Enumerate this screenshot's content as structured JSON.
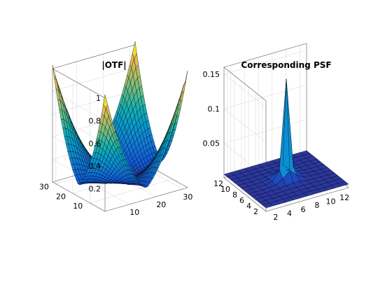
{
  "chart_data": [
    {
      "type": "surface",
      "title": "|OTF|",
      "xlabel": "",
      "ylabel": "",
      "zlabel": "",
      "grid": true,
      "x": [
        1,
        2,
        3,
        4,
        5,
        6,
        7,
        8,
        9,
        10,
        11,
        12,
        13,
        14,
        15,
        16,
        17,
        18,
        19,
        20,
        21,
        22,
        23,
        24,
        25,
        26,
        27,
        28,
        29,
        30,
        31,
        32
      ],
      "y": [
        1,
        2,
        3,
        4,
        5,
        6,
        7,
        8,
        9,
        10,
        11,
        12,
        13,
        14,
        15,
        16,
        17,
        18,
        19,
        20,
        21,
        22,
        23,
        24,
        25,
        26,
        27,
        28,
        29,
        30,
        31,
        32
      ],
      "z_description_peaks": [
        [
          1,
          1,
          1.0
        ],
        [
          1,
          32,
          1.0
        ],
        [
          32,
          1,
          1.0
        ],
        [
          32,
          32,
          1.0
        ]
      ],
      "xlim": [
        1,
        32
      ],
      "ylim": [
        1,
        32
      ],
      "zlim": [
        0,
        1
      ],
      "x_ticks": [
        "10",
        "20",
        "30"
      ],
      "y_ticks": [
        "10",
        "20",
        "30"
      ],
      "z_ticks": [
        "0.2",
        "0.4",
        "0.6",
        "0.8",
        "1"
      ],
      "colormap": "parula"
    },
    {
      "type": "surface",
      "title": "Corresponding PSF",
      "xlabel": "",
      "ylabel": "",
      "zlabel": "",
      "grid": true,
      "x": [
        1,
        2,
        3,
        4,
        5,
        6,
        7,
        8,
        9,
        10,
        11,
        12,
        13
      ],
      "y": [
        1,
        2,
        3,
        4,
        5,
        6,
        7,
        8,
        9,
        10,
        11,
        12,
        13
      ],
      "peak": {
        "x": 7,
        "y": 7,
        "z": 0.15
      },
      "xlim": [
        1,
        13
      ],
      "ylim": [
        1,
        13
      ],
      "zlim": [
        0,
        0.16
      ],
      "x_ticks": [
        "2",
        "4",
        "6",
        "8",
        "10",
        "12"
      ],
      "y_ticks": [
        "2",
        "4",
        "6",
        "8",
        "10",
        "12"
      ],
      "z_ticks": [
        "0.05",
        "0.1",
        "0.15"
      ],
      "colormap": "parula"
    }
  ]
}
